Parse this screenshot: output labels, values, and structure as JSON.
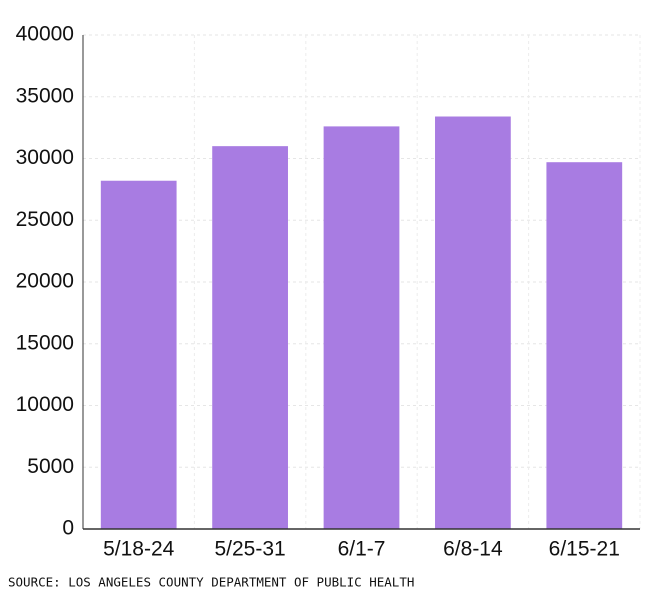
{
  "chart_data": {
    "type": "bar",
    "categories": [
      "5/18-24",
      "5/25-31",
      "6/1-7",
      "6/8-14",
      "6/15-21"
    ],
    "values": [
      28200,
      31000,
      32600,
      33400,
      29700
    ],
    "color": "#a87ce2",
    "ylim": [
      0,
      40000
    ],
    "yticks": [
      0,
      5000,
      10000,
      15000,
      20000,
      25000,
      30000,
      35000,
      40000
    ],
    "grid": true,
    "source": "SOURCE: LOS ANGELES COUNTY DEPARTMENT OF PUBLIC HEALTH"
  }
}
